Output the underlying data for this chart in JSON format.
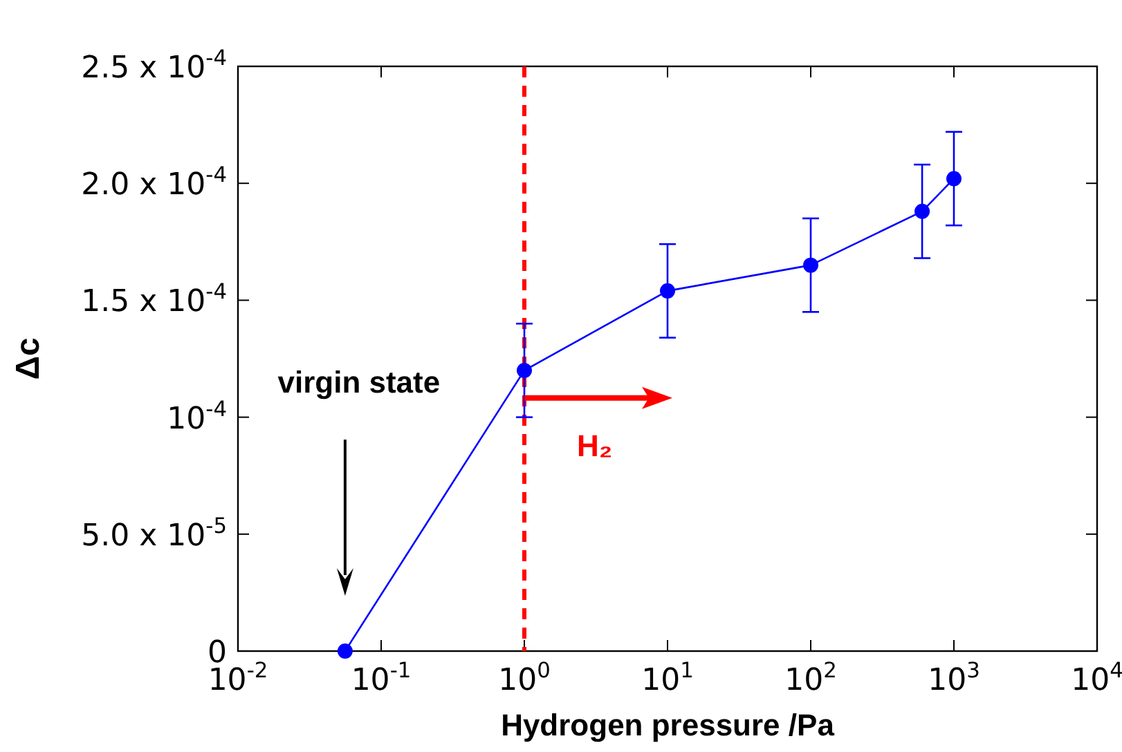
{
  "chart_data": {
    "type": "line",
    "xlabel": "Hydrogen pressure /Pa",
    "ylabel": "Δc",
    "x": [
      0.056,
      1,
      10,
      100,
      600,
      1000
    ],
    "series": [
      {
        "color": "#0000ff",
        "values": [
          0,
          0.00012,
          0.000154,
          0.000165,
          0.000188,
          0.000202
        ],
        "errors": [
          null,
          2e-05,
          2e-05,
          2e-05,
          2e-05,
          2e-05
        ]
      }
    ],
    "log": "x",
    "marker": "circle",
    "line_style": "solid",
    "grid": false,
    "xlim": [
      0.01,
      10000
    ],
    "xticks": [
      {
        "value": 0.01,
        "label": "10$^{-2}$"
      },
      {
        "value": 0.1,
        "label": "10$^{-1}$"
      },
      {
        "value": 1,
        "label": "10$^{0}$"
      },
      {
        "value": 10,
        "label": "10$^{1}$"
      },
      {
        "value": 100,
        "label": "10$^{2}$"
      },
      {
        "value": 1000,
        "label": "10$^{3}$"
      },
      {
        "value": 10000,
        "label": "10$^{4}$"
      }
    ],
    "ylim": [
      0,
      0.00025
    ],
    "yticks": [
      0,
      {
        "value": 5e-05,
        "label": "5.0 x 10$^{-5}$"
      },
      {
        "value": 0.0001,
        "label": "10$^{-4}$"
      },
      {
        "value": 0.00015,
        "label": "1.5 x 10$^{-4}$"
      },
      {
        "value": 0.0002,
        "label": "2.0 x 10$^{-4}$"
      },
      {
        "value": 0.00025,
        "label": "2.5 x 10$^{-4}$"
      }
    ],
    "ref_lines": [
      {
        "axis": "x",
        "value": 1,
        "color": "#ff0000",
        "line_style": "dashed"
      }
    ],
    "annotations": [
      "virgin state",
      "H₂"
    ]
  }
}
